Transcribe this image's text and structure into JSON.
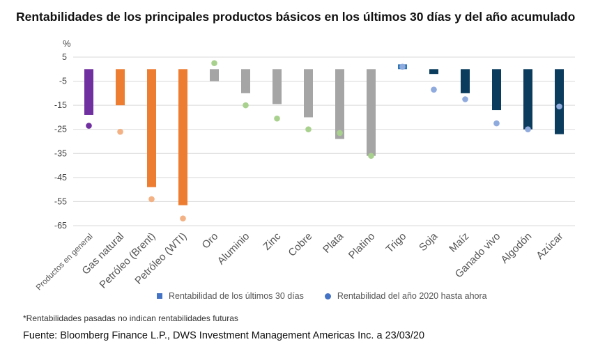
{
  "title": "Rentabilidades de los principales productos básicos en los últimos 30 días y del año acumulado",
  "footnote": "*Rentabilidades pasadas no indican rentabilidades futuras",
  "source": "Fuente: Bloomberg Finance L.P., DWS Investment Management Americas Inc. a 23/03/20",
  "colors": {
    "purple": "#7030a0",
    "orange": "#ed7d31",
    "gray": "#a5a5a5",
    "navy": "#0b3c5d",
    "blue": "#2e75b6",
    "dot_purple": "#7030a0",
    "dot_orange": "#f4b183",
    "dot_green": "#a9d18e",
    "dot_blue": "#8faadc",
    "grid": "#d9d9d9"
  },
  "chart_data": {
    "type": "bar",
    "ylabel": "%",
    "ylim": [
      -65,
      5
    ],
    "yticks": [
      5,
      -5,
      -15,
      -25,
      -35,
      -45,
      -55,
      -65
    ],
    "grid": true,
    "legend_position": "bottom",
    "categories": [
      "Productos en general",
      "Gas natural",
      "Petróleo (Brent)",
      "Petróleo (WTI)",
      "Oro",
      "Aluminio",
      "Zinc",
      "Cobre",
      "Plata",
      "Platino",
      "Trigo",
      "Soja",
      "Maíz",
      "Ganado vivo",
      "Algodón",
      "Azúcar"
    ],
    "series": [
      {
        "name": "Rentabilidad de los últimos 30 días",
        "marker": "bar",
        "legend_color": "#4472c4",
        "values": [
          -19,
          -15,
          -49,
          -56.5,
          -5,
          -10,
          -14.5,
          -20,
          -29,
          -36,
          2,
          -2,
          -10,
          -17,
          -25,
          -27
        ],
        "colors": [
          "#7030a0",
          "#ed7d31",
          "#ed7d31",
          "#ed7d31",
          "#a5a5a5",
          "#a5a5a5",
          "#a5a5a5",
          "#a5a5a5",
          "#a5a5a5",
          "#a5a5a5",
          "#2e75b6",
          "#0b3c5d",
          "#0b3c5d",
          "#0b3c5d",
          "#0b3c5d",
          "#0b3c5d"
        ]
      },
      {
        "name": "Rentabilidad del año 2020 hasta ahora",
        "marker": "dot",
        "legend_color": "#4472c4",
        "values": [
          -23.5,
          -26,
          -54,
          -62,
          2.5,
          -15,
          -20.5,
          -25,
          -26.5,
          -36,
          1,
          -8.5,
          -12.5,
          -22.5,
          -25,
          -15.5
        ],
        "colors": [
          "#7030a0",
          "#f4b183",
          "#f4b183",
          "#f4b183",
          "#a9d18e",
          "#a9d18e",
          "#a9d18e",
          "#a9d18e",
          "#a9d18e",
          "#a9d18e",
          "#8faadc",
          "#8faadc",
          "#8faadc",
          "#8faadc",
          "#8faadc",
          "#8faadc"
        ]
      }
    ]
  }
}
